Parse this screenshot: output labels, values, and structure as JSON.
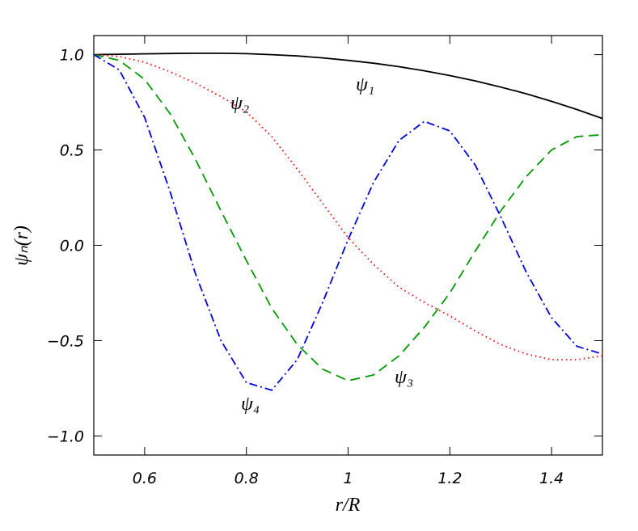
{
  "chart_data": {
    "type": "line",
    "xlabel": "r/R",
    "ylabel": "ψₙ(r)",
    "x": [
      0.5,
      0.55,
      0.6,
      0.65,
      0.7,
      0.75,
      0.8,
      0.85,
      0.9,
      0.95,
      1.0,
      1.05,
      1.1,
      1.15,
      1.2,
      1.25,
      1.3,
      1.35,
      1.4,
      1.45,
      1.5
    ],
    "series": [
      {
        "name": "ψ₁",
        "color": "#000000",
        "dash": "solid",
        "values": [
          1.0,
          1.002,
          1.004,
          1.006,
          1.007,
          1.007,
          1.005,
          1.0,
          0.993,
          0.983,
          0.97,
          0.955,
          0.937,
          0.915,
          0.89,
          0.862,
          0.83,
          0.795,
          0.755,
          0.712,
          0.665
        ]
      },
      {
        "name": "ψ₂",
        "color": "#ff0000",
        "dash": "dotted",
        "values": [
          1.0,
          0.99,
          0.96,
          0.91,
          0.85,
          0.78,
          0.7,
          0.57,
          0.4,
          0.22,
          0.04,
          -0.1,
          -0.22,
          -0.3,
          -0.37,
          -0.45,
          -0.52,
          -0.57,
          -0.6,
          -0.6,
          -0.58
        ]
      },
      {
        "name": "ψ₃",
        "color": "#009900",
        "dash": "dashed",
        "values": [
          1.0,
          0.97,
          0.87,
          0.69,
          0.45,
          0.18,
          -0.08,
          -0.33,
          -0.52,
          -0.65,
          -0.71,
          -0.68,
          -0.58,
          -0.43,
          -0.25,
          -0.03,
          0.18,
          0.36,
          0.5,
          0.57,
          0.58
        ]
      },
      {
        "name": "ψ₄",
        "color": "#0000dd",
        "dash": "dashdot",
        "values": [
          1.0,
          0.92,
          0.67,
          0.28,
          -0.15,
          -0.5,
          -0.72,
          -0.76,
          -0.6,
          -0.3,
          0.03,
          0.33,
          0.55,
          0.65,
          0.6,
          0.42,
          0.15,
          -0.14,
          -0.38,
          -0.53,
          -0.57
        ]
      }
    ],
    "xlim": [
      0.5,
      1.5
    ],
    "xticks": [
      0.6,
      0.8,
      1.0,
      1.2,
      1.4
    ],
    "ylim": [
      -1.1,
      1.1
    ],
    "yticks": [
      {
        "value": 1.0,
        "label": "1.0"
      },
      {
        "value": 0.5,
        "label": "0.5"
      },
      {
        "value": 0.0,
        "label": "0.0"
      },
      {
        "value": -0.5,
        "label": "−0.5"
      },
      {
        "value": -1.0,
        "label": "−1.0"
      }
    ]
  }
}
